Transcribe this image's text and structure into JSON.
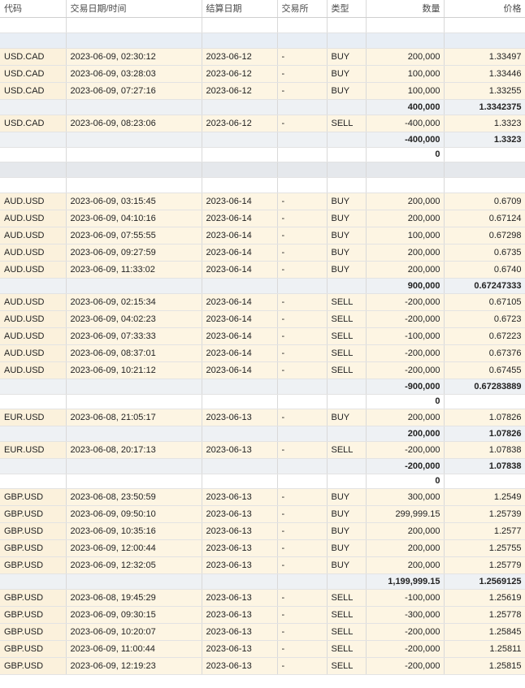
{
  "columns": {
    "symbol": "代码",
    "datetime": "交易日期/时间",
    "settle": "结算日期",
    "exchange": "交易所",
    "type": "类型",
    "qty": "数量",
    "price": "价格"
  },
  "rows": [
    {
      "kind": "spacer"
    },
    {
      "kind": "group"
    },
    {
      "kind": "trade",
      "symbol": "USD.CAD",
      "datetime": "2023-06-09, 02:30:12",
      "settle": "2023-06-12",
      "exchange": "-",
      "type": "BUY",
      "qty": "200,000",
      "price": "1.33497"
    },
    {
      "kind": "trade",
      "symbol": "USD.CAD",
      "datetime": "2023-06-09, 03:28:03",
      "settle": "2023-06-12",
      "exchange": "-",
      "type": "BUY",
      "qty": "100,000",
      "price": "1.33446"
    },
    {
      "kind": "trade",
      "symbol": "USD.CAD",
      "datetime": "2023-06-09, 07:27:16",
      "settle": "2023-06-12",
      "exchange": "-",
      "type": "BUY",
      "qty": "100,000",
      "price": "1.33255"
    },
    {
      "kind": "subtotal",
      "qty": "400,000",
      "price": "1.3342375"
    },
    {
      "kind": "trade",
      "symbol": "USD.CAD",
      "datetime": "2023-06-09, 08:23:06",
      "settle": "2023-06-12",
      "exchange": "-",
      "type": "SELL",
      "qty": "-400,000",
      "price": "1.3323"
    },
    {
      "kind": "subtotal",
      "qty": "-400,000",
      "price": "1.3323"
    },
    {
      "kind": "net",
      "qty": "0",
      "price": ""
    },
    {
      "kind": "sep"
    },
    {
      "kind": "spacer"
    },
    {
      "kind": "trade",
      "symbol": "AUD.USD",
      "datetime": "2023-06-09, 03:15:45",
      "settle": "2023-06-14",
      "exchange": "-",
      "type": "BUY",
      "qty": "200,000",
      "price": "0.6709"
    },
    {
      "kind": "trade",
      "symbol": "AUD.USD",
      "datetime": "2023-06-09, 04:10:16",
      "settle": "2023-06-14",
      "exchange": "-",
      "type": "BUY",
      "qty": "200,000",
      "price": "0.67124"
    },
    {
      "kind": "trade",
      "symbol": "AUD.USD",
      "datetime": "2023-06-09, 07:55:55",
      "settle": "2023-06-14",
      "exchange": "-",
      "type": "BUY",
      "qty": "100,000",
      "price": "0.67298"
    },
    {
      "kind": "trade",
      "symbol": "AUD.USD",
      "datetime": "2023-06-09, 09:27:59",
      "settle": "2023-06-14",
      "exchange": "-",
      "type": "BUY",
      "qty": "200,000",
      "price": "0.6735"
    },
    {
      "kind": "trade",
      "symbol": "AUD.USD",
      "datetime": "2023-06-09, 11:33:02",
      "settle": "2023-06-14",
      "exchange": "-",
      "type": "BUY",
      "qty": "200,000",
      "price": "0.6740"
    },
    {
      "kind": "subtotal",
      "qty": "900,000",
      "price": "0.67247333"
    },
    {
      "kind": "trade",
      "symbol": "AUD.USD",
      "datetime": "2023-06-09, 02:15:34",
      "settle": "2023-06-14",
      "exchange": "-",
      "type": "SELL",
      "qty": "-200,000",
      "price": "0.67105"
    },
    {
      "kind": "trade",
      "symbol": "AUD.USD",
      "datetime": "2023-06-09, 04:02:23",
      "settle": "2023-06-14",
      "exchange": "-",
      "type": "SELL",
      "qty": "-200,000",
      "price": "0.6723"
    },
    {
      "kind": "trade",
      "symbol": "AUD.USD",
      "datetime": "2023-06-09, 07:33:33",
      "settle": "2023-06-14",
      "exchange": "-",
      "type": "SELL",
      "qty": "-100,000",
      "price": "0.67223"
    },
    {
      "kind": "trade",
      "symbol": "AUD.USD",
      "datetime": "2023-06-09, 08:37:01",
      "settle": "2023-06-14",
      "exchange": "-",
      "type": "SELL",
      "qty": "-200,000",
      "price": "0.67376"
    },
    {
      "kind": "trade",
      "symbol": "AUD.USD",
      "datetime": "2023-06-09, 10:21:12",
      "settle": "2023-06-14",
      "exchange": "-",
      "type": "SELL",
      "qty": "-200,000",
      "price": "0.67455"
    },
    {
      "kind": "subtotal",
      "qty": "-900,000",
      "price": "0.67283889"
    },
    {
      "kind": "net",
      "qty": "0",
      "price": ""
    },
    {
      "kind": "trade",
      "symbol": "EUR.USD",
      "datetime": "2023-06-08, 21:05:17",
      "settle": "2023-06-13",
      "exchange": "-",
      "type": "BUY",
      "qty": "200,000",
      "price": "1.07826"
    },
    {
      "kind": "subtotal",
      "qty": "200,000",
      "price": "1.07826"
    },
    {
      "kind": "trade",
      "symbol": "EUR.USD",
      "datetime": "2023-06-08, 20:17:13",
      "settle": "2023-06-13",
      "exchange": "-",
      "type": "SELL",
      "qty": "-200,000",
      "price": "1.07838"
    },
    {
      "kind": "subtotal",
      "qty": "-200,000",
      "price": "1.07838"
    },
    {
      "kind": "net",
      "qty": "0",
      "price": ""
    },
    {
      "kind": "trade",
      "symbol": "GBP.USD",
      "datetime": "2023-06-08, 23:50:59",
      "settle": "2023-06-13",
      "exchange": "-",
      "type": "BUY",
      "qty": "300,000",
      "price": "1.2549"
    },
    {
      "kind": "trade",
      "symbol": "GBP.USD",
      "datetime": "2023-06-09, 09:50:10",
      "settle": "2023-06-13",
      "exchange": "-",
      "type": "BUY",
      "qty": "299,999.15",
      "price": "1.25739"
    },
    {
      "kind": "trade",
      "symbol": "GBP.USD",
      "datetime": "2023-06-09, 10:35:16",
      "settle": "2023-06-13",
      "exchange": "-",
      "type": "BUY",
      "qty": "200,000",
      "price": "1.2577"
    },
    {
      "kind": "trade",
      "symbol": "GBP.USD",
      "datetime": "2023-06-09, 12:00:44",
      "settle": "2023-06-13",
      "exchange": "-",
      "type": "BUY",
      "qty": "200,000",
      "price": "1.25755"
    },
    {
      "kind": "trade",
      "symbol": "GBP.USD",
      "datetime": "2023-06-09, 12:32:05",
      "settle": "2023-06-13",
      "exchange": "-",
      "type": "BUY",
      "qty": "200,000",
      "price": "1.25779"
    },
    {
      "kind": "subtotal",
      "qty": "1,199,999.15",
      "price": "1.2569125"
    },
    {
      "kind": "trade",
      "symbol": "GBP.USD",
      "datetime": "2023-06-08, 19:45:29",
      "settle": "2023-06-13",
      "exchange": "-",
      "type": "SELL",
      "qty": "-100,000",
      "price": "1.25619"
    },
    {
      "kind": "trade",
      "symbol": "GBP.USD",
      "datetime": "2023-06-09, 09:30:15",
      "settle": "2023-06-13",
      "exchange": "-",
      "type": "SELL",
      "qty": "-300,000",
      "price": "1.25778"
    },
    {
      "kind": "trade",
      "symbol": "GBP.USD",
      "datetime": "2023-06-09, 10:20:07",
      "settle": "2023-06-13",
      "exchange": "-",
      "type": "SELL",
      "qty": "-200,000",
      "price": "1.25845"
    },
    {
      "kind": "trade",
      "symbol": "GBP.USD",
      "datetime": "2023-06-09, 11:00:44",
      "settle": "2023-06-13",
      "exchange": "-",
      "type": "SELL",
      "qty": "-200,000",
      "price": "1.25811"
    },
    {
      "kind": "trade",
      "symbol": "GBP.USD",
      "datetime": "2023-06-09, 12:19:23",
      "settle": "2023-06-13",
      "exchange": "-",
      "type": "SELL",
      "qty": "-200,000",
      "price": "1.25815"
    }
  ]
}
